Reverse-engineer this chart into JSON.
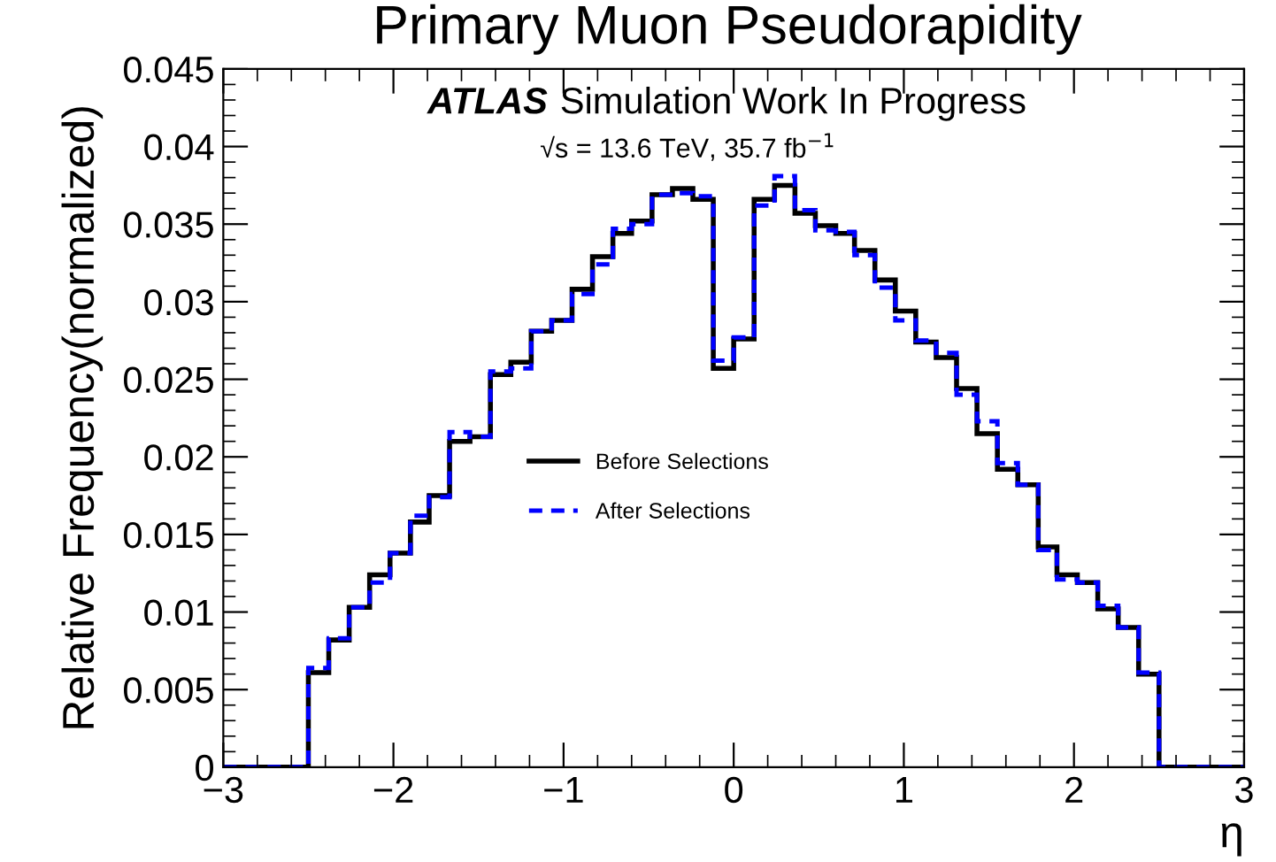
{
  "chart_data": {
    "type": "histogram",
    "title": "Primary Muon Pseudorapidity",
    "xlabel": "η",
    "ylabel": "Relative Frequency(normalized)",
    "annotations": [
      "ATLAS",
      "Simulation Work In Progress",
      "√s = 13.6 TeV, 35.7 fb$^{−1}$"
    ],
    "bins": [
      -3,
      -2.5,
      -2.38,
      -2.26,
      -2.14,
      -2.02,
      -1.9,
      -1.79,
      -1.67,
      -1.55,
      -1.43,
      -1.31,
      -1.19,
      -1.07,
      -0.95,
      -0.83,
      -0.71,
      -0.6,
      -0.48,
      -0.36,
      -0.24,
      -0.12,
      0,
      0.12,
      0.24,
      0.36,
      0.48,
      0.6,
      0.71,
      0.83,
      0.95,
      1.07,
      1.19,
      1.31,
      1.43,
      1.55,
      1.67,
      1.79,
      1.9,
      2.02,
      2.14,
      2.26,
      2.38,
      2.5,
      3
    ],
    "series": [
      {
        "name": "Before Selections",
        "color": "#000000",
        "line_style": "solid",
        "values": [
          0,
          0.0061,
          0.0082,
          0.0103,
          0.0124,
          0.0138,
          0.0158,
          0.0175,
          0.021,
          0.0213,
          0.0253,
          0.0261,
          0.0281,
          0.0288,
          0.0308,
          0.0329,
          0.0344,
          0.0352,
          0.0369,
          0.0373,
          0.0366,
          0.0257,
          0.0276,
          0.0366,
          0.0375,
          0.0357,
          0.0349,
          0.0344,
          0.0333,
          0.0314,
          0.0294,
          0.0274,
          0.0264,
          0.0244,
          0.0215,
          0.0192,
          0.0182,
          0.0142,
          0.0124,
          0.0119,
          0.0102,
          0.009,
          0.006,
          0
        ]
      },
      {
        "name": "After Selections",
        "color": "#0000ff",
        "line_style": "dashed",
        "values": [
          0,
          0.0064,
          0.0083,
          0.0103,
          0.0119,
          0.0138,
          0.0162,
          0.0174,
          0.0216,
          0.0213,
          0.0255,
          0.0257,
          0.0281,
          0.0288,
          0.0305,
          0.0324,
          0.0347,
          0.035,
          0.0369,
          0.037,
          0.0368,
          0.0262,
          0.0277,
          0.0362,
          0.0381,
          0.0359,
          0.0346,
          0.0345,
          0.033,
          0.0309,
          0.0288,
          0.0275,
          0.0267,
          0.024,
          0.0223,
          0.0196,
          0.0182,
          0.014,
          0.0121,
          0.0119,
          0.0104,
          0.009,
          0.0061,
          0
        ]
      }
    ],
    "xlim": [
      -3,
      3
    ],
    "xticks": [
      {
        "value": -3,
        "label": "−3"
      },
      {
        "value": -2,
        "label": "−2"
      },
      {
        "value": -1,
        "label": "−1"
      },
      0,
      1,
      2,
      3
    ],
    "ylim": [
      0,
      0.045
    ],
    "yticks": [
      0,
      0.005,
      0.01,
      0.015,
      0.02,
      0.025,
      0.03,
      0.035,
      0.04,
      0.045
    ],
    "legend": "center left",
    "grid": false
  }
}
